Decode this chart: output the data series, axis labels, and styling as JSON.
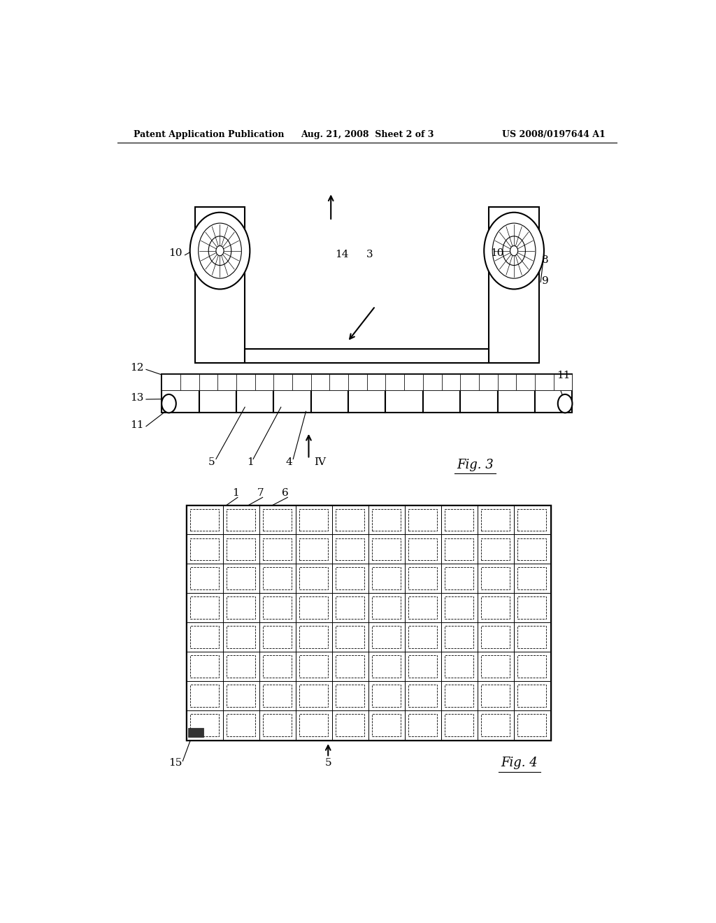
{
  "bg_color": "#ffffff",
  "header_left": "Patent Application Publication",
  "header_mid": "Aug. 21, 2008  Sheet 2 of 3",
  "header_right": "US 2008/0197644 A1",
  "line_color": "#000000",
  "line_width": 1.5,
  "thick_line": 2.5
}
